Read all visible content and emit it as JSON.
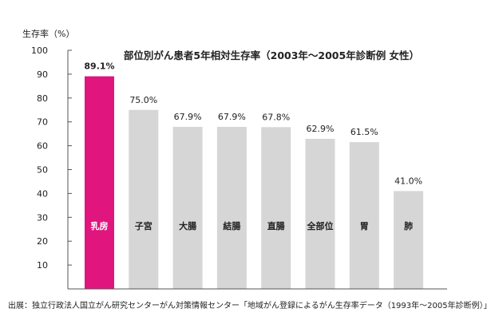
{
  "chart_data": {
    "type": "bar",
    "title": "部位別がん患者5年相対生存率（2003年〜2005年診断例 女性）",
    "ylabel": "生存率（%）",
    "xlabel": "",
    "ylim": [
      0,
      100
    ],
    "yticks": [
      10,
      20,
      30,
      40,
      50,
      60,
      70,
      80,
      90,
      100
    ],
    "grid": false,
    "categories": [
      "乳房",
      "子宮",
      "大腸",
      "結腸",
      "直腸",
      "全部位",
      "胃",
      "肺"
    ],
    "values": [
      89.1,
      75.0,
      67.9,
      67.9,
      67.8,
      62.9,
      61.5,
      41.0
    ],
    "value_labels": [
      "89.1%",
      "75.0%",
      "67.9%",
      "67.9%",
      "67.8%",
      "62.9%",
      "61.5%",
      "41.0%"
    ],
    "highlight_index": 0,
    "colors": {
      "highlight": "#e0157e",
      "bar": "#d6d6d6",
      "axis": "#555555",
      "text": "#222222",
      "label_on_highlight": "#ffffff"
    }
  },
  "source_note": "出展：独立行政法人国立がん研究センターがん対策情報センター「地域がん登録によるがん生存率データ（1993年〜2005年診断例）」"
}
